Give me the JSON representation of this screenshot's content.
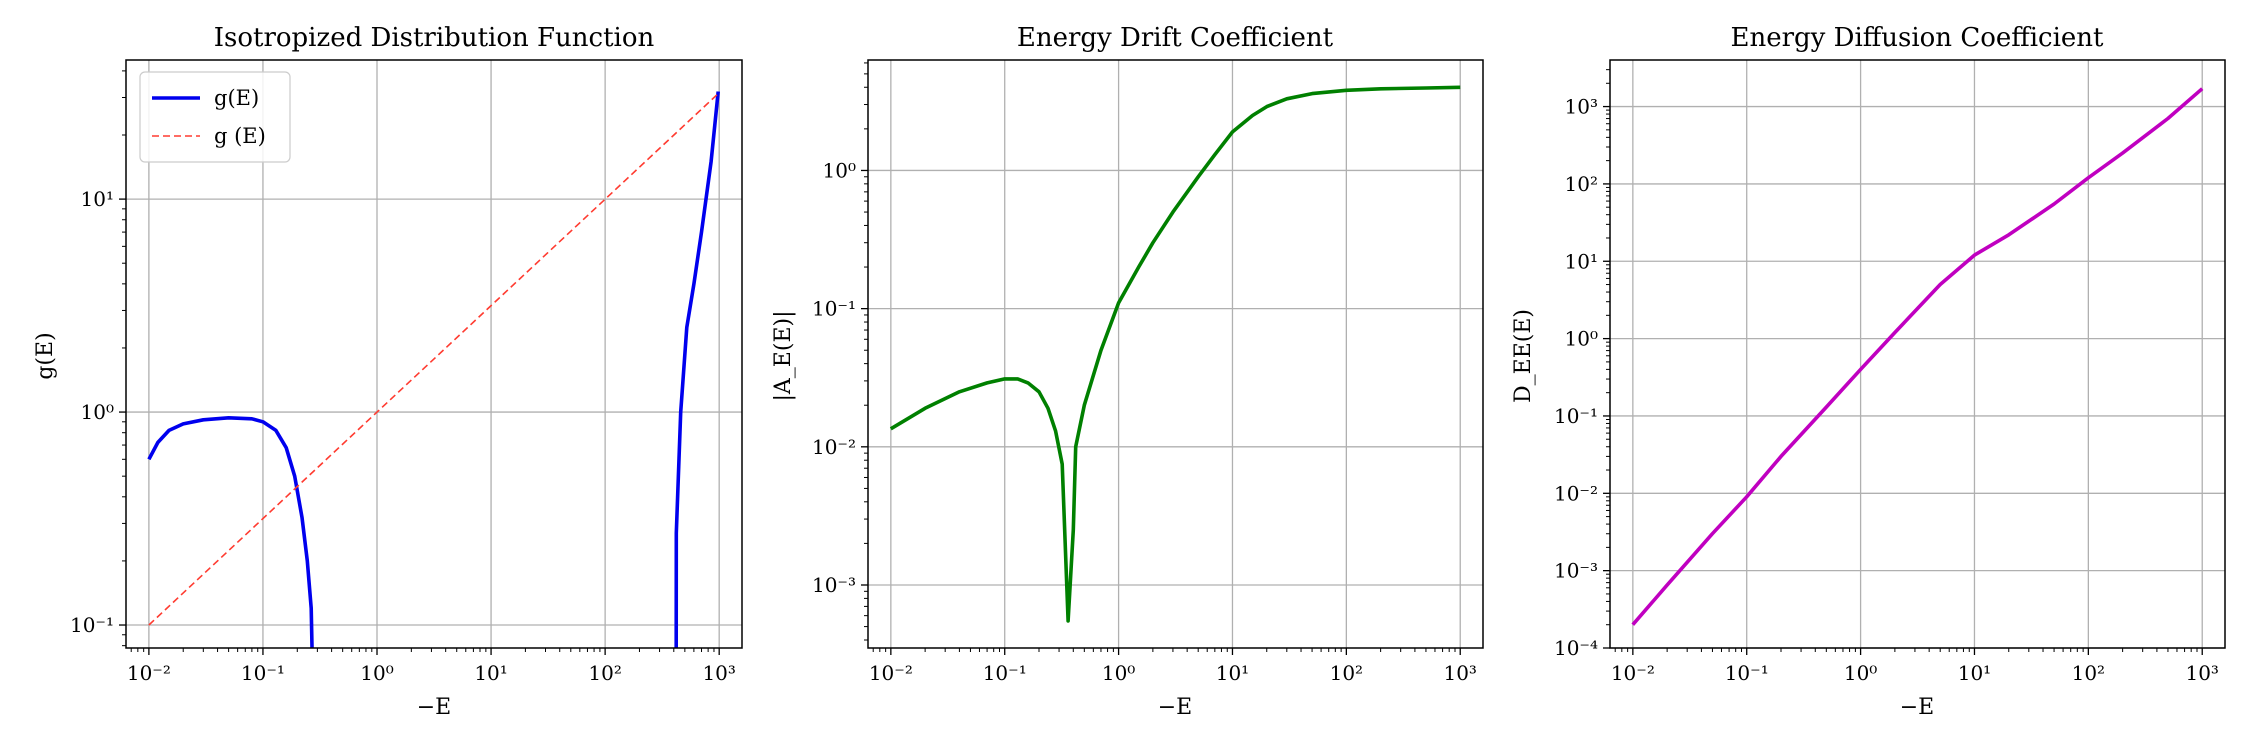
{
  "chart_data": [
    {
      "type": "line",
      "title": "Isotropized Distribution Function",
      "xlabel": "−E",
      "ylabel": "g(E)",
      "xscale": "log",
      "yscale": "log",
      "xlim": [
        0.0063,
        1585
      ],
      "ylim": [
        0.078,
        45
      ],
      "grid": true,
      "legend": "top-left",
      "x_ticks": [
        {
          "value": 0.01,
          "label": "10⁻²"
        },
        {
          "value": 0.1,
          "label": "10⁻¹"
        },
        {
          "value": 1,
          "label": "10⁰"
        },
        {
          "value": 10,
          "label": "10¹"
        },
        {
          "value": 100,
          "label": "10²"
        },
        {
          "value": 1000,
          "label": "10³"
        }
      ],
      "y_ticks": [
        {
          "value": 0.1,
          "label": "10⁻¹"
        },
        {
          "value": 1,
          "label": "10⁰"
        },
        {
          "value": 10,
          "label": "10¹"
        }
      ],
      "series": [
        {
          "name": "g(E)",
          "color": "#0000ee",
          "style": "solid",
          "segments": [
            [
              [
                0.01,
                0.6
              ],
              [
                0.012,
                0.72
              ],
              [
                0.015,
                0.82
              ],
              [
                0.02,
                0.88
              ],
              [
                0.03,
                0.92
              ],
              [
                0.05,
                0.94
              ],
              [
                0.08,
                0.93
              ],
              [
                0.1,
                0.9
              ],
              [
                0.13,
                0.82
              ],
              [
                0.16,
                0.68
              ],
              [
                0.19,
                0.5
              ],
              [
                0.22,
                0.32
              ],
              [
                0.245,
                0.2
              ],
              [
                0.265,
                0.12
              ],
              [
                0.27,
                0.075
              ]
            ],
            [
              [
                420,
                0.075
              ],
              [
                421,
                0.27
              ],
              [
                460,
                1.0
              ],
              [
                520,
                2.5
              ],
              [
                600,
                4.0
              ],
              [
                700,
                7.0
              ],
              [
                850,
                15
              ],
              [
                980,
                32
              ]
            ]
          ]
        },
        {
          "name": "g (E)",
          "color": "#ff3b30",
          "style": "dashed",
          "segments": [
            [
              [
                0.01,
                0.1
              ],
              [
                1000,
                31.6
              ]
            ]
          ]
        }
      ]
    },
    {
      "type": "line",
      "title": "Energy Drift Coefficient",
      "xlabel": "−E",
      "ylabel": "|A_E(E)|",
      "xscale": "log",
      "yscale": "log",
      "xlim": [
        0.0063,
        1585
      ],
      "ylim": [
        0.00035,
        6.3
      ],
      "grid": true,
      "x_ticks": [
        {
          "value": 0.01,
          "label": "10⁻²"
        },
        {
          "value": 0.1,
          "label": "10⁻¹"
        },
        {
          "value": 1,
          "label": "10⁰"
        },
        {
          "value": 10,
          "label": "10¹"
        },
        {
          "value": 100,
          "label": "10²"
        },
        {
          "value": 1000,
          "label": "10³"
        }
      ],
      "y_ticks": [
        {
          "value": 0.001,
          "label": "10⁻³"
        },
        {
          "value": 0.01,
          "label": "10⁻²"
        },
        {
          "value": 0.1,
          "label": "10⁻¹"
        },
        {
          "value": 1,
          "label": "10⁰"
        }
      ],
      "series": [
        {
          "name": "",
          "color": "#008000",
          "style": "solid",
          "segments": [
            [
              [
                0.01,
                0.0135
              ],
              [
                0.02,
                0.019
              ],
              [
                0.04,
                0.025
              ],
              [
                0.07,
                0.029
              ],
              [
                0.1,
                0.031
              ],
              [
                0.13,
                0.031
              ],
              [
                0.16,
                0.029
              ],
              [
                0.2,
                0.025
              ],
              [
                0.24,
                0.019
              ],
              [
                0.28,
                0.013
              ],
              [
                0.32,
                0.0075
              ],
              [
                0.36,
                0.00055
              ],
              [
                0.4,
                0.0025
              ],
              [
                0.42,
                0.01
              ],
              [
                0.5,
                0.02
              ],
              [
                0.7,
                0.05
              ],
              [
                1.0,
                0.11
              ],
              [
                1.5,
                0.2
              ],
              [
                2,
                0.3
              ],
              [
                3,
                0.5
              ],
              [
                5,
                0.9
              ],
              [
                7,
                1.3
              ],
              [
                10,
                1.9
              ],
              [
                15,
                2.5
              ],
              [
                20,
                2.9
              ],
              [
                30,
                3.3
              ],
              [
                50,
                3.6
              ],
              [
                100,
                3.8
              ],
              [
                200,
                3.9
              ],
              [
                500,
                3.95
              ],
              [
                1000,
                4.0
              ]
            ]
          ]
        }
      ]
    },
    {
      "type": "line",
      "title": "Energy Diffusion Coefficient",
      "xlabel": "−E",
      "ylabel": "D_EE(E)",
      "xscale": "log",
      "yscale": "log",
      "xlim": [
        0.0063,
        1585
      ],
      "ylim": [
        0.0001,
        4000
      ],
      "grid": true,
      "x_ticks": [
        {
          "value": 0.01,
          "label": "10⁻²"
        },
        {
          "value": 0.1,
          "label": "10⁻¹"
        },
        {
          "value": 1,
          "label": "10⁰"
        },
        {
          "value": 10,
          "label": "10¹"
        },
        {
          "value": 100,
          "label": "10²"
        },
        {
          "value": 1000,
          "label": "10³"
        }
      ],
      "y_ticks": [
        {
          "value": 0.0001,
          "label": "10⁻⁴"
        },
        {
          "value": 0.001,
          "label": "10⁻³"
        },
        {
          "value": 0.01,
          "label": "10⁻²"
        },
        {
          "value": 0.1,
          "label": "10⁻¹"
        },
        {
          "value": 1,
          "label": "10⁰"
        },
        {
          "value": 10,
          "label": "10¹"
        },
        {
          "value": 100,
          "label": "10²"
        },
        {
          "value": 1000,
          "label": "10³"
        }
      ],
      "series": [
        {
          "name": "",
          "color": "#c000c0",
          "style": "solid",
          "segments": [
            [
              [
                0.01,
                0.0002
              ],
              [
                0.02,
                0.00065
              ],
              [
                0.05,
                0.003
              ],
              [
                0.1,
                0.009
              ],
              [
                0.2,
                0.03
              ],
              [
                0.5,
                0.13
              ],
              [
                1,
                0.4
              ],
              [
                2,
                1.2
              ],
              [
                5,
                5
              ],
              [
                10,
                12
              ],
              [
                20,
                22
              ],
              [
                50,
                55
              ],
              [
                100,
                120
              ],
              [
                200,
                250
              ],
              [
                500,
                700
              ],
              [
                1000,
                1700
              ]
            ]
          ]
        }
      ]
    }
  ]
}
